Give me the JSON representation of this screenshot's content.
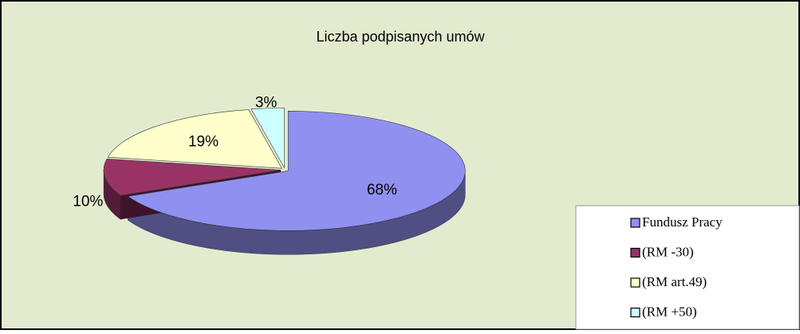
{
  "chart_data": {
    "type": "pie3d",
    "title": "Liczba podpisanych umów",
    "categories": [
      "Fundusz Pracy",
      "(RM -30)",
      "(RM art.49)",
      "(RM +50)"
    ],
    "values": [
      68,
      10,
      19,
      3
    ],
    "value_labels": [
      "68%",
      "10%",
      "19%",
      "3%"
    ],
    "colors": [
      "#9090f0",
      "#993366",
      "#ffffcc",
      "#ccffff"
    ],
    "legend": "bottom-right"
  }
}
